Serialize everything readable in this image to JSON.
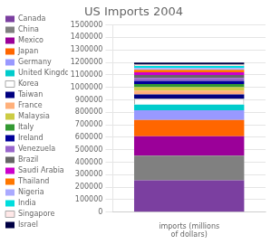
{
  "chart_data": {
    "type": "bar",
    "title": "US Imports 2004",
    "stacked": true,
    "grid": true,
    "legend": "left",
    "categories": [
      "imports (millions\nof dollars)"
    ],
    "ylim": [
      0,
      1500000
    ],
    "yticks": [
      0,
      100000,
      200000,
      300000,
      400000,
      500000,
      600000,
      700000,
      800000,
      900000,
      1000000,
      1100000,
      1200000,
      1300000,
      1400000,
      1500000
    ],
    "series": [
      {
        "name": "Canada",
        "color": "#7B3FA0",
        "values": [
          256400
        ]
      },
      {
        "name": "China",
        "color": "#808080",
        "values": [
          196700
        ]
      },
      {
        "name": "Mexico",
        "color": "#9B0099",
        "values": [
          155900
        ]
      },
      {
        "name": "Japan",
        "color": "#FF6600",
        "values": [
          129800
        ]
      },
      {
        "name": "Germany",
        "color": "#9999FF",
        "values": [
          77200
        ]
      },
      {
        "name": "United Kingdom",
        "color": "#00CCCC",
        "values": [
          46400
        ]
      },
      {
        "name": "Korea",
        "color": "#FFFFFF",
        "values": [
          46100
        ]
      },
      {
        "name": "Taiwan",
        "color": "#000080",
        "values": [
          34600
        ]
      },
      {
        "name": "France",
        "color": "#FFB07A",
        "values": [
          30100
        ]
      },
      {
        "name": "Malaysia",
        "color": "#CCCC44",
        "values": [
          28100
        ]
      },
      {
        "name": "Italy",
        "color": "#339933",
        "values": [
          25800
        ]
      },
      {
        "name": "Ireland",
        "color": "#000099",
        "values": [
          24000
        ]
      },
      {
        "name": "Venezuela",
        "color": "#9966CC",
        "values": [
          23700
        ]
      },
      {
        "name": "Brazil",
        "color": "#666666",
        "values": [
          23700
        ]
      },
      {
        "name": "Saudi Arabia",
        "color": "#CC00CC",
        "values": [
          22400
        ]
      },
      {
        "name": "Thailand",
        "color": "#FF7700",
        "values": [
          20400
        ]
      },
      {
        "name": "Nigeria",
        "color": "#AAAAFF",
        "values": [
          14600
        ]
      },
      {
        "name": "India",
        "color": "#00DDDD",
        "values": [
          14800
        ]
      },
      {
        "name": "Singapore",
        "color": "#FFE8E8",
        "values": [
          14200
        ]
      },
      {
        "name": "Israel",
        "color": "#000044",
        "values": [
          12700
        ]
      }
    ]
  }
}
